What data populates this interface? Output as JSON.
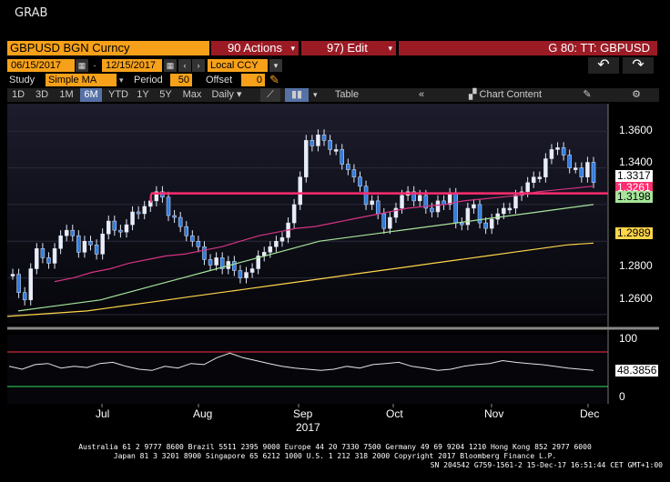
{
  "window": {
    "title": "GRAB"
  },
  "header": {
    "security": "GBPUSD BGN Curncy",
    "actions": "90 Actions",
    "edit": "97) Edit",
    "function": "G 80: TT: GBPUSD",
    "start_date": "06/15/2017",
    "end_date": "12/15/2017",
    "currency": "Local CCY"
  },
  "study_row": {
    "study_label": "Study",
    "study_value": "Simple MA",
    "period_label": "Period",
    "period_value": "50",
    "offset_label": "Offset",
    "offset_value": "0"
  },
  "toolbar": {
    "ranges": [
      "1D",
      "3D",
      "1M",
      "6M",
      "YTD",
      "1Y",
      "5Y",
      "Max"
    ],
    "active_range": "6M",
    "frequency": "Daily",
    "table_label": "Table",
    "chart_content_label": "Chart Content"
  },
  "price_axis": {
    "ticks": [
      "1.3600",
      "1.3400",
      "1.2800",
      "1.2600"
    ]
  },
  "price_labels": {
    "last": "1.3317",
    "resistance": "1.3261",
    "ma_mid": "1.3198",
    "ma_slow": "1.2989"
  },
  "colors": {
    "last": "#000000",
    "resistance": "#ff2d6f",
    "ma_mid": "#a6e59a",
    "ma_slow": "#ffd54a",
    "panel_bg": "#0a0a18"
  },
  "osc_axis": {
    "ticks": [
      "100",
      "48.3856",
      "0"
    ]
  },
  "time_axis": {
    "months": [
      "Jul",
      "Aug",
      "Sep",
      "Oct",
      "Nov",
      "Dec"
    ],
    "year": "2017"
  },
  "footer": {
    "line1": "Australia 61 2 9777 8600 Brazil 5511 2395 9000 Europe 44 20 7330 7500 Germany 49 69 9204 1210 Hong Kong 852 2977 6000",
    "line2": "Japan 81 3 3201 8900       Singapore 65 6212 1000       U.S. 1 212 318 2000        Copyright 2017 Bloomberg Finance L.P.",
    "line3": "SN 204542 G759-1561-2 15-Dec-17 16:51:44 CET  GMT+1:00"
  },
  "chart_data": {
    "type": "line",
    "title": "",
    "series": [
      {
        "values": [
          1.282,
          1.272,
          1.268,
          1.285,
          1.296,
          1.291,
          1.288,
          1.296,
          1.303,
          1.306,
          1.303,
          1.294,
          1.3,
          1.298,
          1.293,
          1.304,
          1.311,
          1.306,
          1.305,
          1.309,
          1.316,
          1.315,
          1.319,
          1.322,
          1.327,
          1.324,
          1.314,
          1.313,
          1.308,
          1.303,
          1.3,
          1.297,
          1.29,
          1.287,
          1.291,
          1.285,
          1.289,
          1.284,
          1.28,
          1.283,
          1.285,
          1.292,
          1.294,
          1.297,
          1.3,
          1.302,
          1.31,
          1.32,
          1.335,
          1.355,
          1.352,
          1.358,
          1.355,
          1.35,
          1.35,
          1.342,
          1.339,
          1.335,
          1.33,
          1.32,
          1.322,
          1.315,
          1.307,
          1.313,
          1.318,
          1.325,
          1.327,
          1.322,
          1.325,
          1.318,
          1.316,
          1.322,
          1.32,
          1.326,
          1.31,
          1.309,
          1.318,
          1.32,
          1.31,
          1.307,
          1.312,
          1.315,
          1.318,
          1.318,
          1.325,
          1.327,
          1.332,
          1.335,
          1.335,
          1.345,
          1.35,
          1.351,
          1.347,
          1.34,
          1.34,
          1.335,
          1.343,
          1.332
        ]
      },
      {
        "values": [
          1.278,
          1.28,
          1.283,
          1.285,
          1.288,
          1.29,
          1.292,
          1.293,
          1.295,
          1.297,
          1.3,
          1.303,
          1.305,
          1.307,
          1.308,
          1.31,
          1.312,
          1.314,
          1.316,
          1.318,
          1.319,
          1.32,
          1.322,
          1.323,
          1.324,
          1.325,
          1.327,
          1.328,
          1.329,
          1.33
        ]
      },
      {
        "values": [
          1.262,
          1.264,
          1.266,
          1.268,
          1.272,
          1.276,
          1.28,
          1.284,
          1.288,
          1.292,
          1.296,
          1.3,
          1.302,
          1.304,
          1.306,
          1.308,
          1.31,
          1.312,
          1.314,
          1.316,
          1.318,
          1.32
        ]
      },
      {
        "values": [
          1.259,
          1.26,
          1.261,
          1.262,
          1.264,
          1.266,
          1.268,
          1.27,
          1.272,
          1.274,
          1.276,
          1.278,
          1.28,
          1.282,
          1.284,
          1.286,
          1.288,
          1.29,
          1.292,
          1.294,
          1.296,
          1.298,
          1.299
        ]
      }
    ],
    "resistance": 1.3261,
    "oscillator": {
      "values": [
        55,
        50,
        58,
        60,
        52,
        55,
        53,
        60,
        62,
        55,
        50,
        48,
        55,
        52,
        60,
        58,
        70,
        78,
        70,
        65,
        60,
        55,
        52,
        50,
        48,
        50,
        55,
        52,
        58,
        60,
        62,
        55,
        52,
        48,
        50,
        55,
        58,
        60,
        65,
        62,
        60,
        58,
        55,
        52,
        50,
        48
      ]
    },
    "ylim": [
      1.255,
      1.375
    ],
    "grid": true
  }
}
